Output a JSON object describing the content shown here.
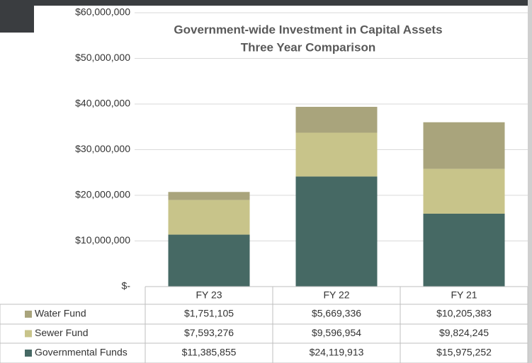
{
  "chart_data": {
    "type": "stacked_bar",
    "title": "Government-wide Investment in Capital Assets",
    "subtitle": "Three Year Comparison",
    "categories": [
      "FY 23",
      "FY 22",
      "FY 21"
    ],
    "series": [
      {
        "name": "Water Fund",
        "color": "#a9a47c",
        "values": [
          1751105,
          5669336,
          10205383
        ],
        "value_labels": [
          "$1,751,105",
          "$5,669,336",
          "$10,205,383"
        ]
      },
      {
        "name": "Sewer Fund",
        "color": "#c8c48a",
        "values": [
          7593276,
          9596954,
          9824245
        ],
        "value_labels": [
          "$7,593,276",
          "$9,596,954",
          "$9,824,245"
        ]
      },
      {
        "name": "Governmental Funds",
        "color": "#466964",
        "values": [
          11385855,
          24119913,
          15975252
        ],
        "value_labels": [
          "$11,385,855",
          "$24,119,913",
          "$15,975,252"
        ]
      }
    ],
    "ylim": [
      0,
      60000000
    ],
    "yticks": [
      {
        "value": 0,
        "label": "$-"
      },
      {
        "value": 10000000,
        "label": "$10,000,000"
      },
      {
        "value": 20000000,
        "label": "$20,000,000"
      },
      {
        "value": 30000000,
        "label": "$30,000,000"
      },
      {
        "value": 40000000,
        "label": "$40,000,000"
      },
      {
        "value": 50000000,
        "label": "$50,000,000"
      },
      {
        "value": 60000000,
        "label": "$60,000,000"
      }
    ],
    "grid": true
  }
}
